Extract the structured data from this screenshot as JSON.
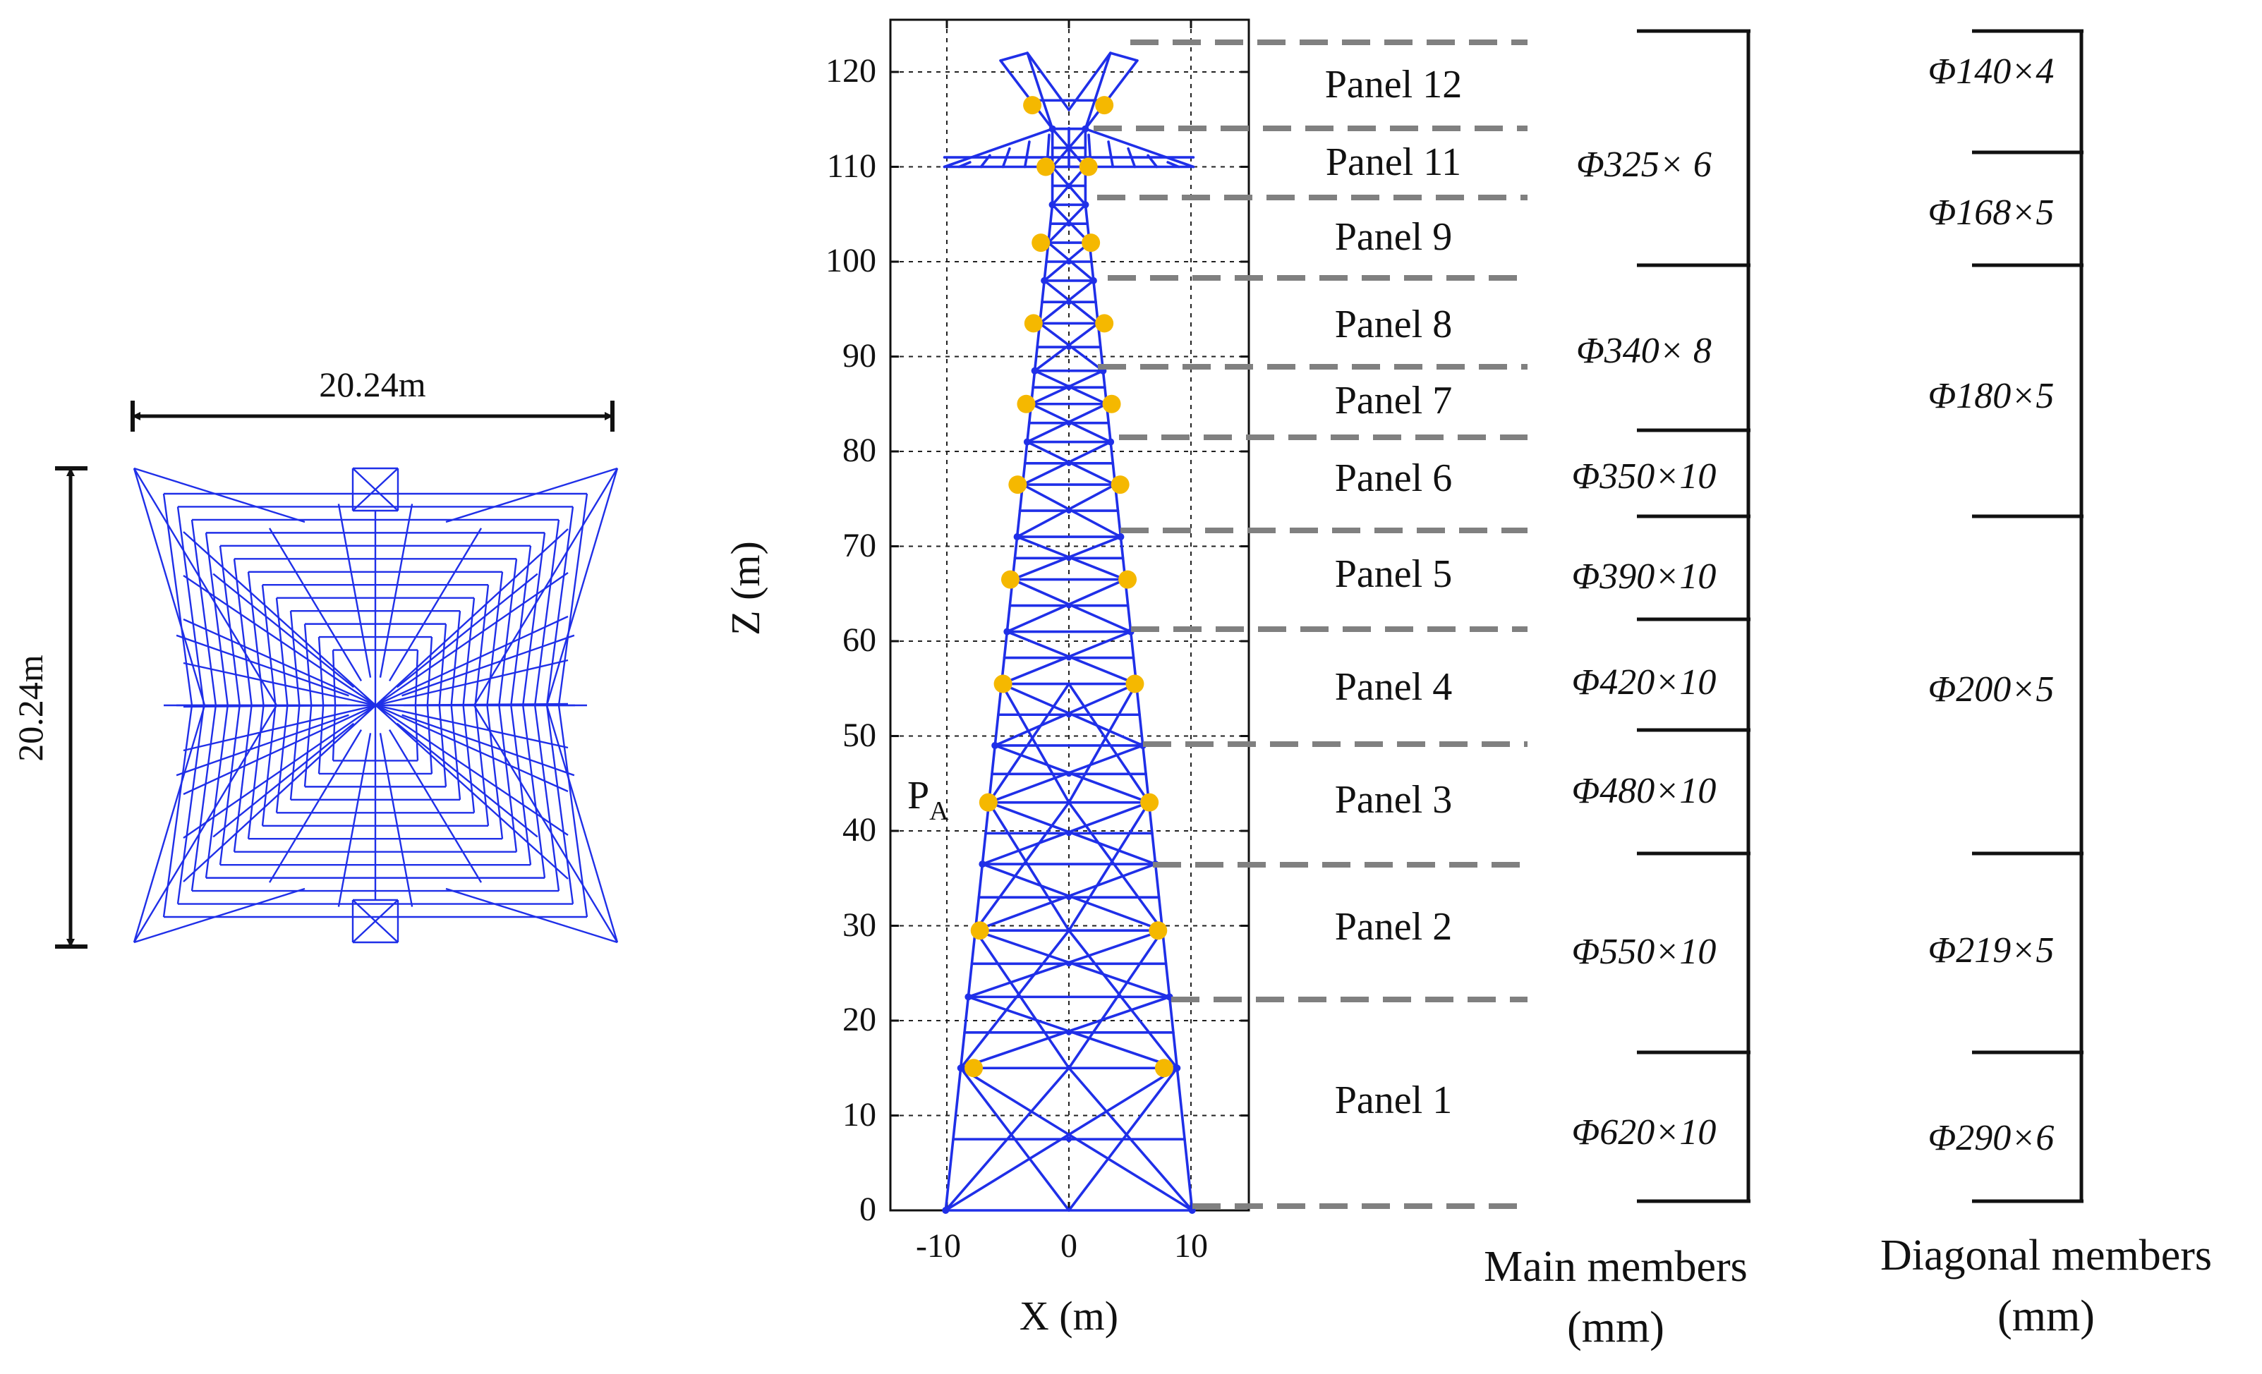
{
  "plan_view": {
    "width_label": "20.24m",
    "height_label": "20.24m"
  },
  "elevation": {
    "x_axis_label": "X (m)",
    "z_axis_label": "Z (m)",
    "x_ticks": [
      "-10",
      "0",
      "10"
    ],
    "z_ticks": [
      "0",
      "10",
      "20",
      "30",
      "40",
      "50",
      "60",
      "70",
      "80",
      "90",
      "100",
      "110",
      "120"
    ],
    "point_label_main": "P",
    "point_label_sub": "A"
  },
  "panels": [
    "Panel 12",
    "Panel 11",
    "Panel 9",
    "Panel 8",
    "Panel 7",
    "Panel 6",
    "Panel 5",
    "Panel 4",
    "Panel 3",
    "Panel 2",
    "Panel 1"
  ],
  "main_members": {
    "title_line1": "Main members",
    "title_line2": "(mm)",
    "sizes": [
      "Φ325× 6",
      "Φ340× 8",
      "Φ350×10",
      "Φ390×10",
      "Φ420×10",
      "Φ480×10",
      "Φ550×10",
      "Φ620×10"
    ]
  },
  "diagonal_members": {
    "title_line1": "Diagonal members",
    "title_line2": "(mm)",
    "sizes": [
      "Φ140×4",
      "Φ168×5",
      "Φ180×5",
      "Φ200×5",
      "Φ219×5",
      "Φ290×6"
    ]
  },
  "colors": {
    "structure": "#1f2fe8",
    "joints": "#f5b800",
    "dash": "#808080",
    "ink": "#111111"
  }
}
